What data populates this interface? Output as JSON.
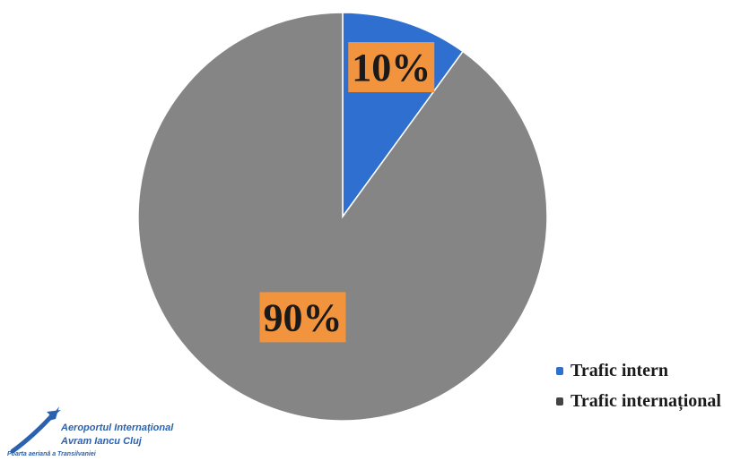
{
  "chart_data": {
    "type": "pie",
    "title": "",
    "slices": [
      {
        "name": "Trafic intern",
        "value": 10,
        "label": "10%",
        "color": "#2e6fd0"
      },
      {
        "name": "Trafic internațional",
        "value": 90,
        "label": "90%",
        "color": "#858585"
      }
    ],
    "start_angle_deg": 0,
    "direction": "clockwise",
    "legend_position": "bottom-right"
  },
  "logo": {
    "line1": "Aeroportul Internațional",
    "line2": "Avram Iancu Cluj",
    "line3": "Poarta aeriană a Transilvaniei",
    "color": "#2b62b0"
  }
}
